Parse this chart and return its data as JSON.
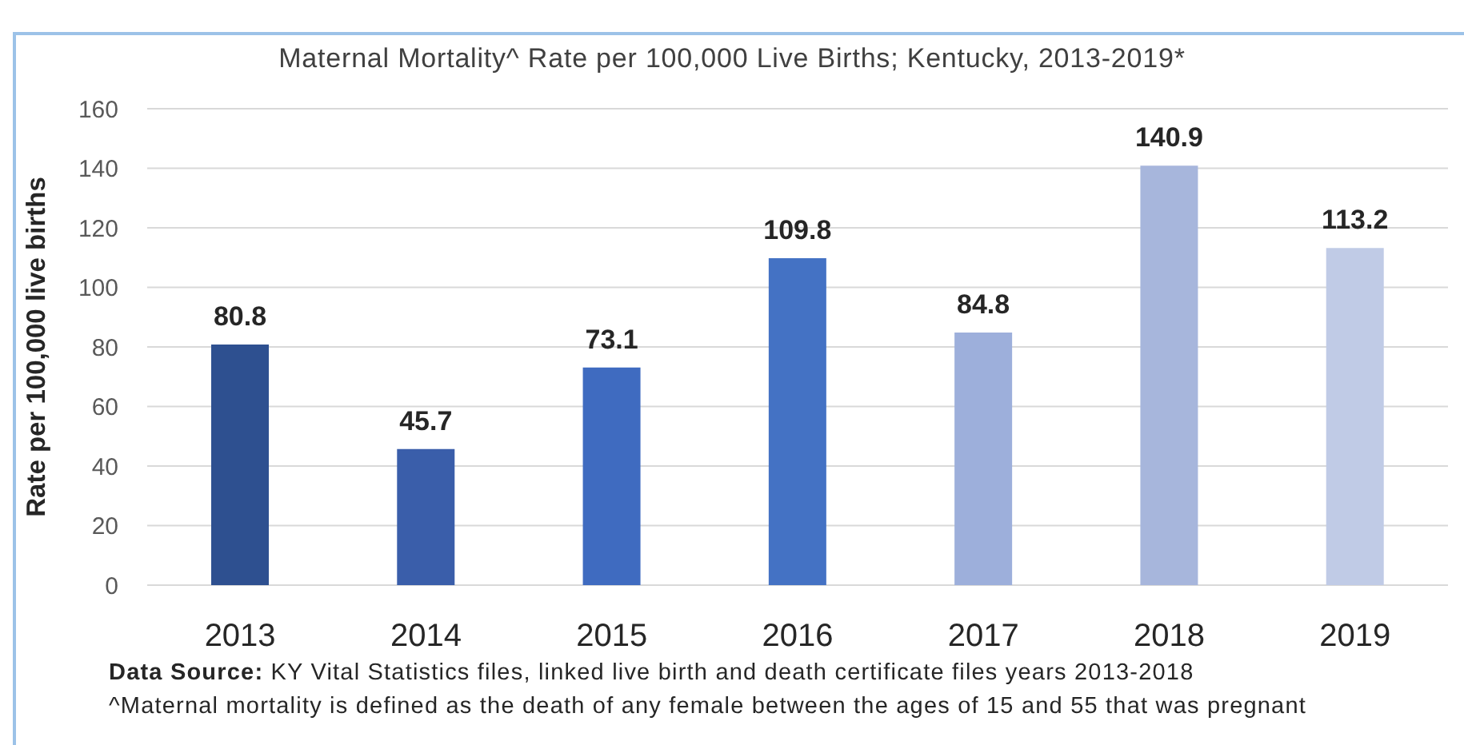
{
  "chart_data": {
    "type": "bar",
    "title": "Maternal Mortality^ Rate per 100,000 Live Births; Kentucky, 2013-2019*",
    "ylabel": "Rate per 100,000 live births",
    "categories": [
      "2013",
      "2014",
      "2015",
      "2016",
      "2017",
      "2018",
      "2019"
    ],
    "values": [
      80.8,
      45.7,
      73.1,
      109.8,
      84.8,
      140.9,
      113.2
    ],
    "colors": [
      "#2e5090",
      "#3a5eaa",
      "#3f6bc0",
      "#4472c4",
      "#9dafdb",
      "#a7b6dc",
      "#c0cbe6"
    ],
    "ylim": [
      0,
      160
    ],
    "yticks": [
      0,
      20,
      40,
      60,
      80,
      100,
      120,
      140,
      160
    ],
    "grid": "y",
    "data_labels": true,
    "annotations": [
      "Data Source: KY Vital Statistics files, linked live birth and death certificate files years 2013-2018",
      "^Maternal mortality is defined as the death of any female between the ages of 15 and 55 that was pregnant"
    ]
  }
}
